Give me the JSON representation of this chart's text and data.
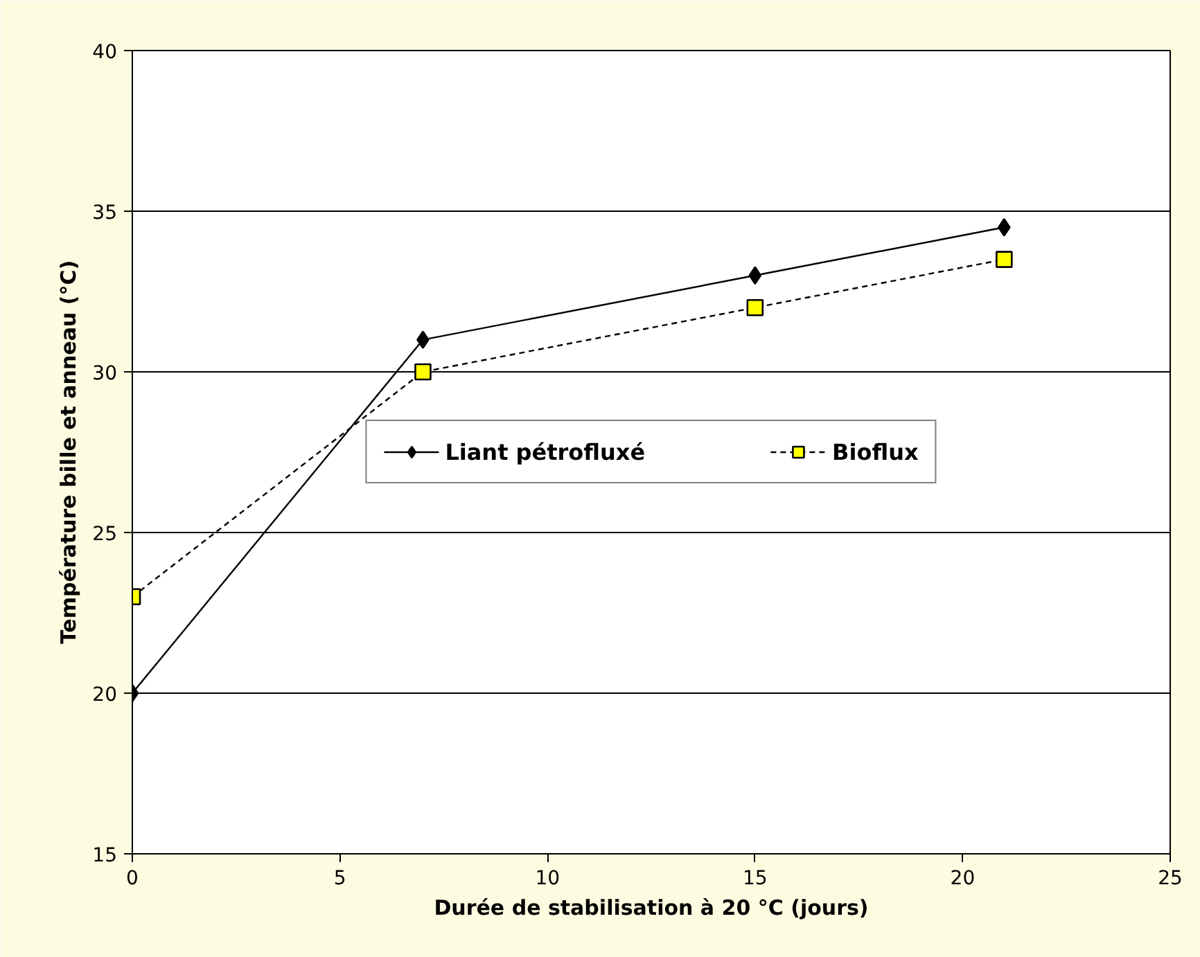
{
  "chart_data": {
    "type": "line",
    "xlabel": "Durée de stabilisation à 20 °C (jours)",
    "ylabel": "Température bille et anneau (°C)",
    "xlim": [
      0,
      25
    ],
    "xticks": [
      0,
      5,
      10,
      15,
      20,
      25
    ],
    "ylim": [
      15,
      40
    ],
    "yticks": [
      15,
      20,
      25,
      30,
      35,
      40
    ],
    "grid": "y",
    "legend": "center",
    "series": [
      {
        "name": "Liant pétrofluxé",
        "color": "#000000",
        "x": [
          0,
          7,
          15,
          21
        ],
        "values": [
          20,
          31,
          33,
          34.5
        ],
        "marker": "diamond",
        "line_style": "solid"
      },
      {
        "name": "Bioflux",
        "color": "#ffff00",
        "x": [
          0,
          7,
          15,
          21
        ],
        "values": [
          23,
          30,
          32,
          33.5
        ],
        "marker": "square",
        "line_style": "dashed"
      }
    ]
  }
}
